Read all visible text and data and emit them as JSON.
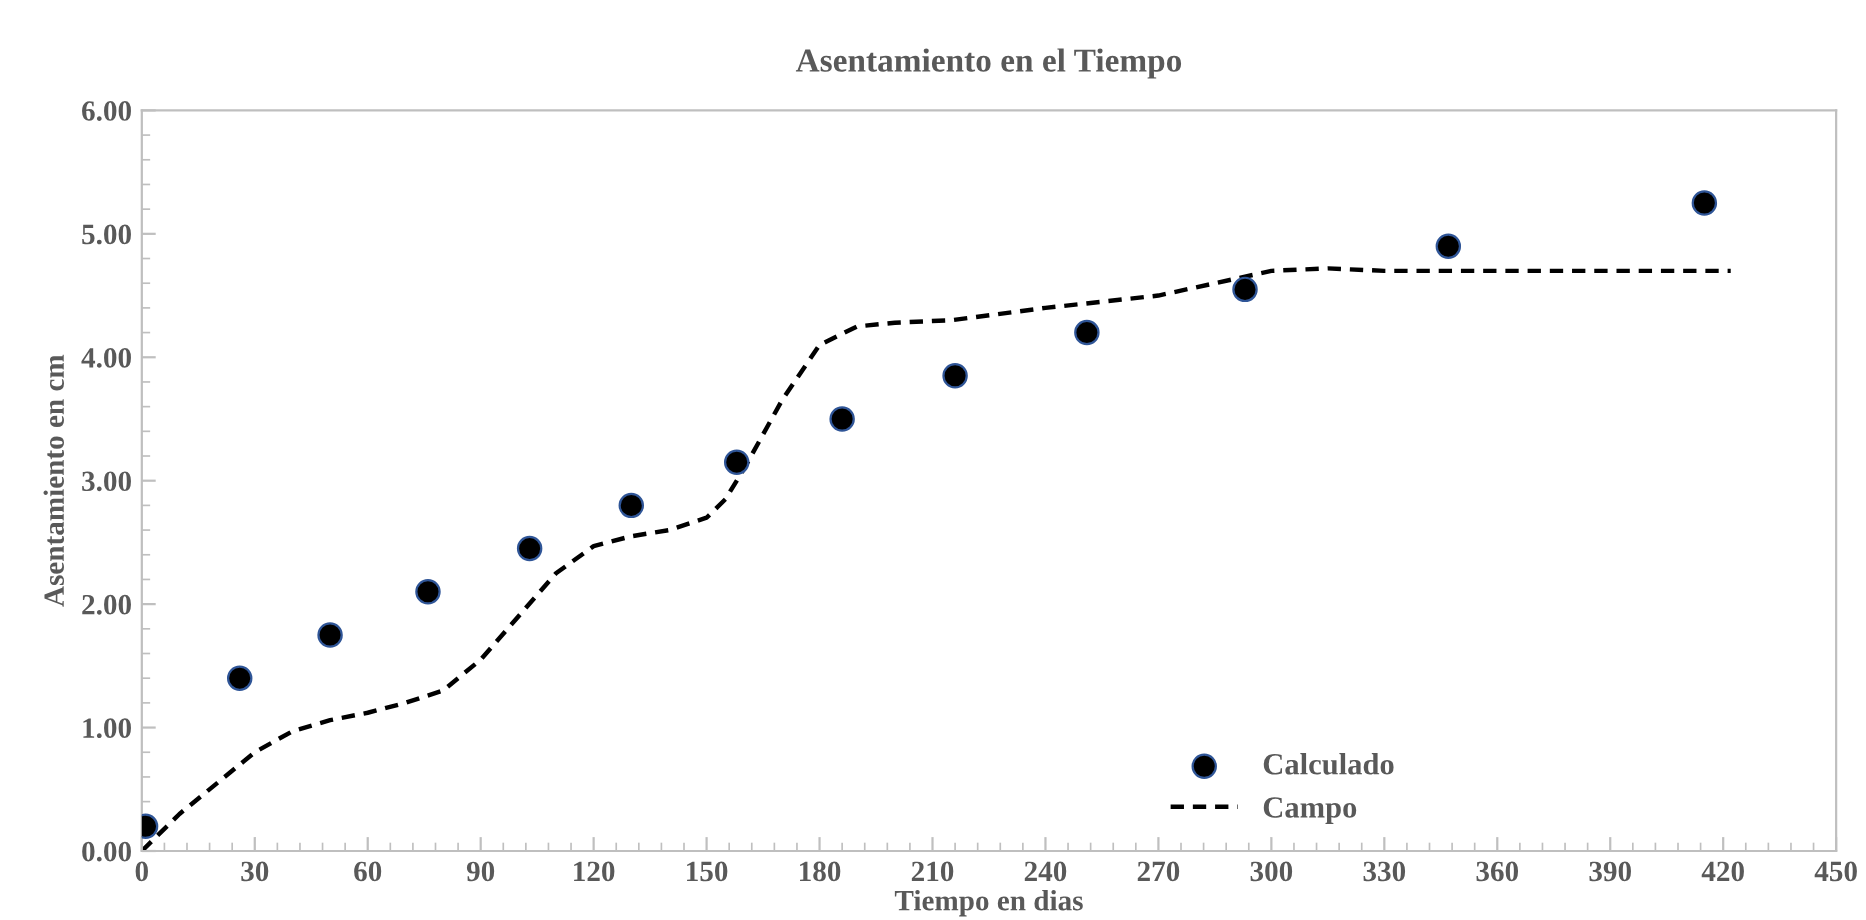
{
  "chart_data": {
    "type": "scatter",
    "title": "Asentamiento en el Tiempo",
    "xlabel": "Tiempo en dias",
    "ylabel": "Asentamiento en cm",
    "xlim": [
      0,
      450
    ],
    "xticks": [
      0,
      30,
      60,
      90,
      120,
      150,
      180,
      210,
      240,
      270,
      300,
      330,
      360,
      390,
      420,
      450
    ],
    "ylim": [
      0,
      6
    ],
    "yticks": [
      {
        "value": 0,
        "label": "0.00"
      },
      {
        "value": 1,
        "label": "1.00"
      },
      {
        "value": 2,
        "label": "2.00"
      },
      {
        "value": 3,
        "label": "3.00"
      },
      {
        "value": 4,
        "label": "4.00"
      },
      {
        "value": 5,
        "label": "5.00"
      },
      {
        "value": 6,
        "label": "6.00"
      }
    ],
    "grid": false,
    "legend": "bottom right",
    "series": [
      {
        "name": "Calculado",
        "color": "#000000",
        "marker": "circle",
        "x": [
          1,
          26,
          50,
          76,
          103,
          130,
          158,
          186,
          216,
          251,
          293,
          347,
          415
        ],
        "values": [
          0.2,
          1.4,
          1.75,
          2.1,
          2.45,
          2.8,
          3.15,
          3.5,
          3.85,
          4.2,
          4.55,
          4.9,
          5.25
        ]
      },
      {
        "name": "Campo",
        "type": "line",
        "color": "#000000",
        "line_style": "dashed",
        "x": [
          0,
          10,
          20,
          30,
          40,
          50,
          60,
          70,
          80,
          90,
          100,
          110,
          120,
          130,
          140,
          150,
          155,
          160,
          170,
          180,
          190,
          200,
          215,
          240,
          270,
          285,
          300,
          315,
          330,
          422
        ],
        "values": [
          0,
          0.3,
          0.55,
          0.8,
          0.97,
          1.06,
          1.12,
          1.2,
          1.3,
          1.55,
          1.9,
          2.25,
          2.47,
          2.55,
          2.6,
          2.7,
          2.85,
          3.1,
          3.65,
          4.1,
          4.25,
          4.28,
          4.3,
          4.4,
          4.5,
          4.6,
          4.7,
          4.72,
          4.7,
          4.7
        ]
      }
    ]
  }
}
